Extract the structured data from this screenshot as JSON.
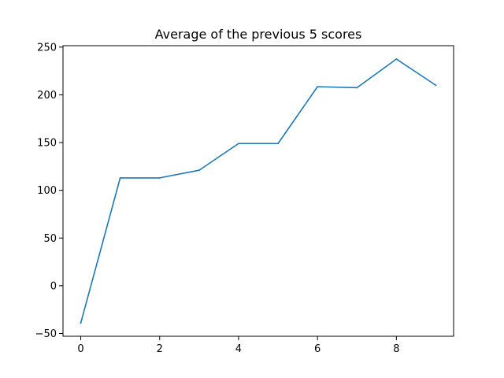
{
  "chart_data": {
    "type": "line",
    "title": "Average of the previous 5 scores",
    "xlabel": "",
    "ylabel": "",
    "xlim": [
      -0.45,
      9.45
    ],
    "ylim": [
      -52.9,
      251.5
    ],
    "x_ticks": [
      0,
      2,
      4,
      6,
      8
    ],
    "x_tick_labels": [
      "0",
      "2",
      "4",
      "6",
      "8"
    ],
    "y_ticks": [
      -50,
      0,
      50,
      100,
      150,
      200,
      250
    ],
    "y_tick_labels": [
      "−50",
      "0",
      "50",
      "100",
      "150",
      "200",
      "250"
    ],
    "grid": false,
    "legend": "none",
    "series": [
      {
        "color": "#1f77b4",
        "x": [
          0,
          1,
          2,
          3,
          4,
          5,
          6,
          7,
          8,
          9
        ],
        "values": [
          -39,
          113,
          113,
          121,
          149,
          149,
          208.5,
          207.5,
          237.5,
          210
        ]
      }
    ]
  }
}
